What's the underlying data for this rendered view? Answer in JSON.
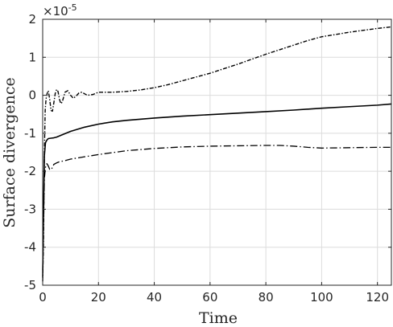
{
  "chart_data": {
    "type": "line",
    "xlabel": "Time",
    "ylabel": "Surface divergence",
    "y_exponent": "×10",
    "y_exponent_power": "-5",
    "xlim": [
      0,
      125
    ],
    "ylim": [
      -5e-05,
      2e-05
    ],
    "grid": true,
    "x_ticks": [
      0,
      20,
      40,
      60,
      80,
      100,
      120
    ],
    "x_tick_labels": [
      "0",
      "20",
      "40",
      "60",
      "80",
      "100",
      "120"
    ],
    "y_ticks": [
      -5e-05,
      -4e-05,
      -3e-05,
      -2e-05,
      -1e-05,
      0,
      1e-05,
      2e-05
    ],
    "y_tick_labels": [
      "-5",
      "-4",
      "-3",
      "-2",
      "-1",
      "0",
      "1",
      "2"
    ],
    "series": [
      {
        "style": "dashdot-dense",
        "color": "#000000",
        "x": [
          0,
          0.3,
          0.6,
          0.9,
          1.2,
          1.6,
          2.0,
          2.5,
          3.0,
          3.5,
          4.0,
          4.5,
          5.0,
          5.5,
          6.0,
          6.5,
          7.0,
          7.5,
          8.0,
          9.0,
          10.0,
          11.0,
          12.0,
          13.0,
          14.0,
          15.0,
          16.0,
          18.0,
          20.0,
          25.0,
          30.0,
          35.0,
          40.0,
          45.0,
          50.0,
          55.0,
          60.0,
          65.0,
          70.0,
          75.0,
          80.0,
          85.0,
          90.0,
          95.0,
          100.0,
          105.0,
          110.0,
          115.0,
          120.0,
          125.0
        ],
        "y": [
          -4.9e-05,
          -3.8e-05,
          -1.5e-05,
          -4e-06,
          -1e-06,
          5e-07,
          1.2e-06,
          -1e-06,
          -4e-06,
          -4.2e-06,
          -2e-06,
          5e-07,
          1.5e-06,
          1e-06,
          -1e-06,
          -2.2e-06,
          -1.8e-06,
          -5e-07,
          8e-07,
          1.2e-06,
          0.0,
          -8e-07,
          -2e-07,
          6e-07,
          8e-07,
          4e-07,
          0.0,
          2e-07,
          8e-07,
          8e-07,
          1e-06,
          1.4e-06,
          2e-06,
          2.8e-06,
          3.8e-06,
          4.8e-06,
          5.8e-06,
          7e-06,
          8.2e-06,
          9.5e-06,
          1.08e-05,
          1.2e-05,
          1.32e-05,
          1.44e-05,
          1.54e-05,
          1.6e-05,
          1.66e-05,
          1.71e-05,
          1.76e-05,
          1.8e-05
        ]
      },
      {
        "style": "solid",
        "color": "#000000",
        "x": [
          0,
          0.3,
          0.6,
          1.0,
          1.5,
          2.0,
          3.0,
          4.0,
          5.0,
          7.0,
          10.0,
          15.0,
          20.0,
          25.0,
          30.0,
          40.0,
          50.0,
          60.0,
          70.0,
          80.0,
          90.0,
          100.0,
          110.0,
          120.0,
          125.0
        ],
        "y": [
          -4.8e-05,
          -3e-05,
          -1.6e-05,
          -1.25e-05,
          -1.18e-05,
          -1.14e-05,
          -1.13e-05,
          -1.12e-05,
          -1.1e-05,
          -1.04e-05,
          -9.5e-06,
          -8.4e-06,
          -7.6e-06,
          -7e-06,
          -6.6e-06,
          -6e-06,
          -5.5e-06,
          -5.1e-06,
          -4.7e-06,
          -4.3e-06,
          -3.9e-06,
          -3.4e-06,
          -3e-06,
          -2.6e-06,
          -2.3e-06
        ]
      },
      {
        "style": "dashdot-sparse",
        "color": "#000000",
        "x": [
          0,
          0.3,
          0.6,
          1.0,
          1.5,
          2.0,
          2.5,
          3.0,
          3.5,
          4.0,
          5.0,
          6.0,
          8.0,
          10.0,
          15.0,
          20.0,
          30.0,
          40.0,
          50.0,
          60.0,
          70.0,
          80.0,
          85.0,
          90.0,
          95.0,
          100.0,
          110.0,
          120.0,
          125.0
        ],
        "y": [
          -4.6e-05,
          -3.3e-05,
          -2.2e-05,
          -1.9e-05,
          -1.8e-05,
          -1.86e-05,
          -1.95e-05,
          -1.96e-05,
          -1.9e-05,
          -1.82e-05,
          -1.78e-05,
          -1.75e-05,
          -1.72e-05,
          -1.68e-05,
          -1.62e-05,
          -1.56e-05,
          -1.46e-05,
          -1.4e-05,
          -1.36e-05,
          -1.34e-05,
          -1.33e-05,
          -1.32e-05,
          -1.32e-05,
          -1.34e-05,
          -1.37e-05,
          -1.39e-05,
          -1.38e-05,
          -1.37e-05,
          -1.37e-05
        ]
      }
    ]
  }
}
